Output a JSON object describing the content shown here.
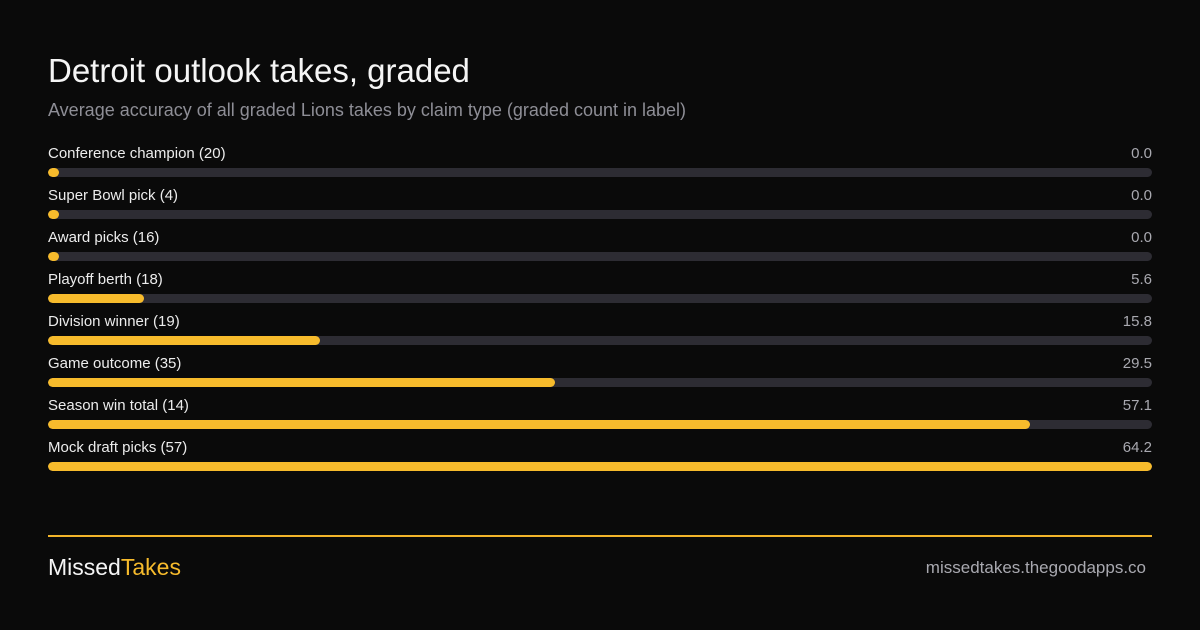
{
  "colors": {
    "background": "#0a0a0a",
    "accent": "#f7bb2c",
    "track": "#2d2c33"
  },
  "footer": {
    "brand_part1": "Missed",
    "brand_part2": "Takes",
    "url": "missedtakes.thegoodapps.co"
  },
  "chart_data": {
    "type": "bar",
    "orientation": "horizontal",
    "title": "Detroit outlook takes, graded",
    "subtitle": "Average accuracy of all graded Lions takes by claim type (graded count in label)",
    "xlim": [
      0,
      64.2
    ],
    "grid": false,
    "categories": [
      "Conference champion (20)",
      "Super Bowl pick (4)",
      "Award picks (16)",
      "Playoff berth (18)",
      "Division winner (19)",
      "Game outcome (35)",
      "Season win total (14)",
      "Mock draft picks (57)"
    ],
    "values": [
      0.0,
      0.0,
      0.0,
      5.6,
      15.8,
      29.5,
      57.1,
      64.2
    ],
    "value_labels": [
      "0.0",
      "0.0",
      "0.0",
      "5.6",
      "15.8",
      "29.5",
      "57.1",
      "64.2"
    ]
  }
}
